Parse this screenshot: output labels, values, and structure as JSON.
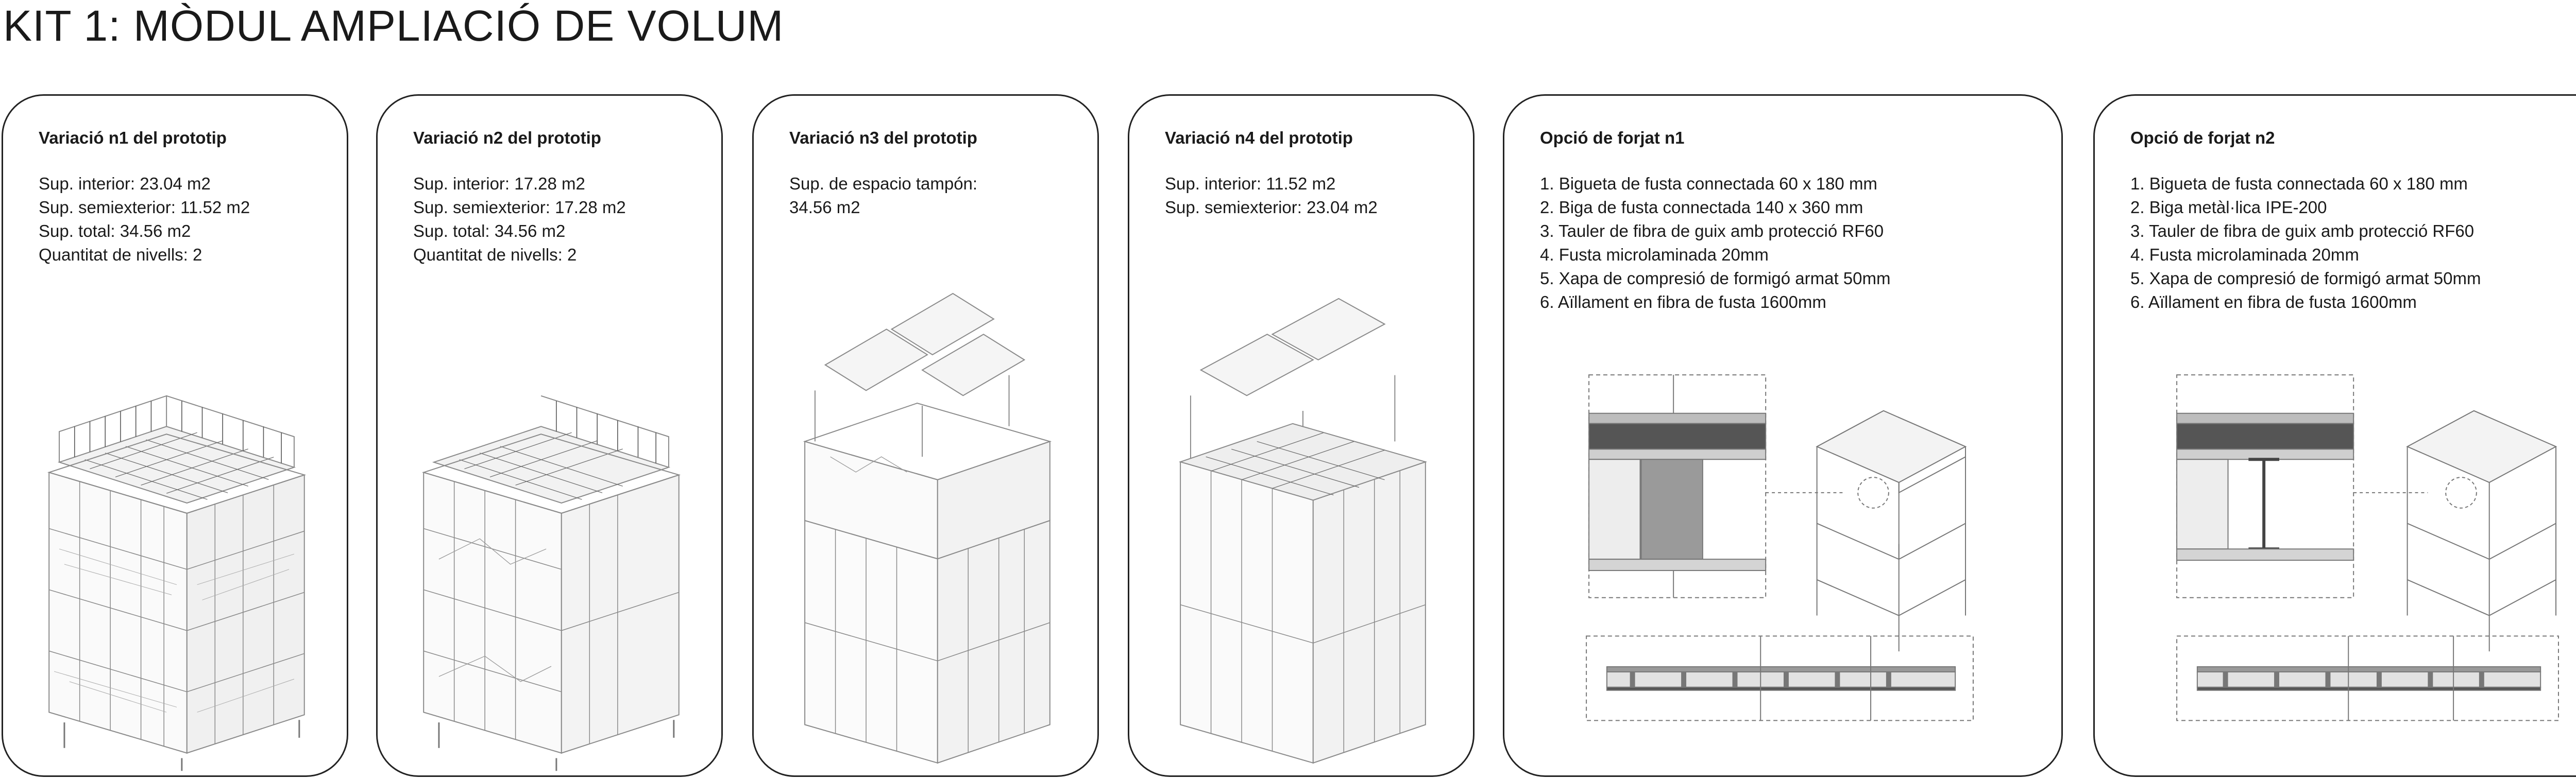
{
  "page": {
    "title": "KIT 1: MÒDUL AMPLIACIÓ DE VOLUM"
  },
  "cards": [
    {
      "title": "Variació n1 del prototip",
      "lines": [
        "Sup. interior: 23.04 m2",
        "Sup. semiexterior: 11.52 m2",
        "Sup. total: 34.56 m2",
        "Quantitat de nivells: 2"
      ],
      "illustration": "axonometric-module-icon"
    },
    {
      "title": "Variació n2 del prototip",
      "lines": [
        "Sup. interior: 17.28 m2",
        "Sup. semiexterior: 17.28 m2",
        "Sup. total: 34.56 m2",
        "Quantitat de nivells: 2"
      ],
      "illustration": "axonometric-module-icon"
    },
    {
      "title": "Variació n3 del prototip",
      "lines": [
        "Sup. de espacio tampón:",
        "34.56 m2"
      ],
      "illustration": "axonometric-module-solar-icon"
    },
    {
      "title": "Variació n4 del prototip",
      "lines": [
        "Sup. interior: 11.52 m2",
        "Sup. semiexterior: 23.04 m2"
      ],
      "illustration": "axonometric-module-solar-icon"
    },
    {
      "title": "Opció de forjat n1",
      "lines": [
        "1. Bigueta de fusta connectada 60 x 180 mm",
        "2. Biga de fusta connectada 140 x 360 mm",
        "3. Tauler de fibra de guix amb protecció RF60",
        "4. Fusta microlaminada 20mm",
        "5. Xapa de compresió de formigó armat 50mm",
        "6. Aïllament en fibra de fusta 1600mm"
      ],
      "illustration": "slab-detail-timber-icon"
    },
    {
      "title": "Opció de forjat n2",
      "lines": [
        "1. Bigueta de fusta connectada 60 x 180 mm",
        "2. Biga metàl·lica IPE-200",
        "3. Tauler de fibra de guix amb protecció RF60",
        "4. Fusta microlaminada 20mm",
        "5. Xapa de compresió de formigó armat 50mm",
        "6. Aïllament en fibra de fusta 1600mm"
      ],
      "illustration": "slab-detail-steel-icon"
    }
  ]
}
